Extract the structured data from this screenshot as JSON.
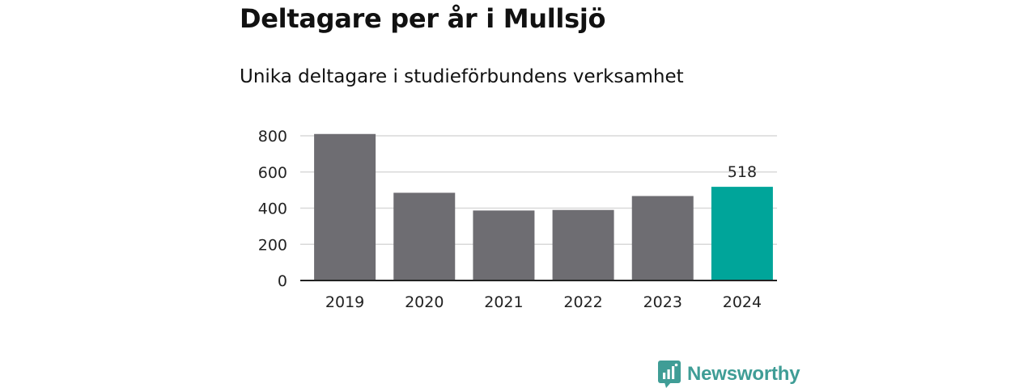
{
  "title": "Deltagare per år i Mullsjö",
  "subtitle": "Unika deltagare i studieförbundens verksamhet",
  "brand": {
    "name": "Newsworthy",
    "color": "#3f9d96",
    "icon": "newsworthy-logo-icon"
  },
  "colors": {
    "bar": "#6e6d72",
    "highlight": "#00a59a",
    "grid": "#d9d9d9",
    "axis": "#222222"
  },
  "chart_data": {
    "type": "bar",
    "title": "Deltagare per år i Mullsjö",
    "subtitle": "Unika deltagare i studieförbundens verksamhet",
    "xlabel": "",
    "ylabel": "",
    "categories": [
      "2019",
      "2020",
      "2021",
      "2022",
      "2023",
      "2024"
    ],
    "values": [
      810,
      485,
      387,
      390,
      467,
      518
    ],
    "highlight_index": 5,
    "data_labels": [
      {
        "category": "2024",
        "text": "518"
      }
    ],
    "ylim": [
      0,
      800
    ],
    "yticks": [
      0,
      200,
      400,
      600,
      800
    ],
    "grid": true,
    "legend": "none"
  }
}
